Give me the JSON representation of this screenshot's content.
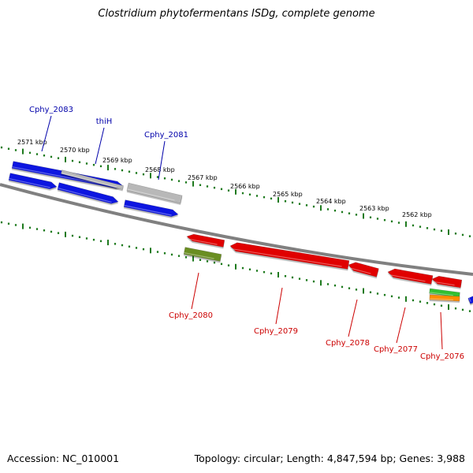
{
  "title": "Clostridium phytofermentans ISDg, complete genome",
  "footer": {
    "accession": "Accession: NC_010001",
    "topology": "Topology: circular; Length: 4,847,594 bp; Genes: 3,988"
  },
  "colors": {
    "backbone": "#808080",
    "tick": "#1e7a1e",
    "forward_gene": "#0a14e0",
    "reverse_gene": "#e00000",
    "pseudo_gene": "#b8b8b8",
    "olive_feature": "#6b8e23",
    "green_feature": "#33c033",
    "orange_feature": "#ff8c00",
    "forward_label": "#0000aa",
    "reverse_label": "#cc0000"
  },
  "scale_labels": [
    "2571 kbp",
    "2570 kbp",
    "2569 kbp",
    "2568 kbp",
    "2567 kbp",
    "2566 kbp",
    "2565 kbp",
    "2564 kbp",
    "2563 kbp",
    "2562 kbp"
  ],
  "forward_labels": [
    "Cphy_2083",
    "thiH",
    "Cphy_2081"
  ],
  "reverse_labels": [
    "Cphy_2080",
    "Cphy_2079",
    "Cphy_2078",
    "Cphy_2077",
    "Cphy_2076"
  ]
}
